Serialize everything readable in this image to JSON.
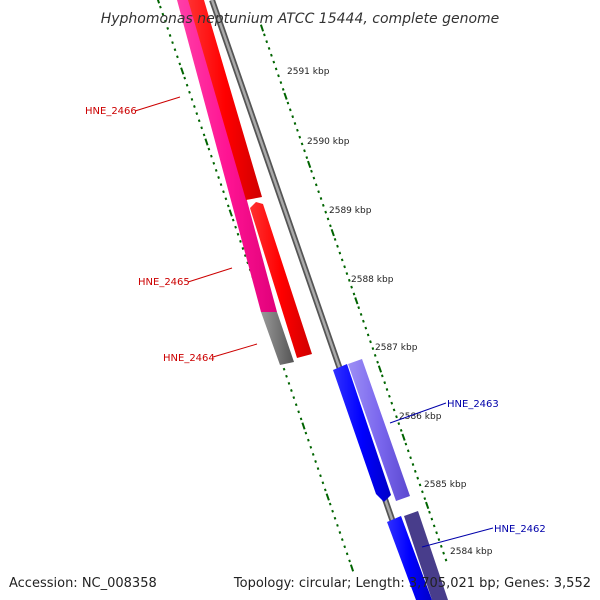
{
  "title": "Hyphomonas neptunium ATCC 15444, complete genome",
  "footer": {
    "accession": "Accession: NC_008358",
    "summary": "Topology: circular; Length: 3,705,021 bp; Genes: 3,552"
  },
  "ticks": [
    "2591 kbp",
    "2590 kbp",
    "2589 kbp",
    "2588 kbp",
    "2587 kbp",
    "2586 kbp",
    "2585 kbp",
    "2584 kbp"
  ],
  "genes": [
    {
      "name": "HNE_2466",
      "strand": "reverse",
      "color": "#cc0000"
    },
    {
      "name": "HNE_2465",
      "strand": "reverse",
      "color": "#cc0000"
    },
    {
      "name": "HNE_2464",
      "strand": "reverse",
      "color": "#cc0000"
    },
    {
      "name": "HNE_2463",
      "strand": "forward",
      "color": "#0000aa"
    },
    {
      "name": "HNE_2462",
      "strand": "forward",
      "color": "#0000aa"
    }
  ],
  "colors": {
    "reverse_cds": "#ff0000",
    "reverse_gene": "#ff1493",
    "forward_cds": "#0000ff",
    "forward_gene": "#7b68ee",
    "forward_gene_dark": "#483d8b",
    "backbone": "#888888",
    "tick": "#006400"
  }
}
